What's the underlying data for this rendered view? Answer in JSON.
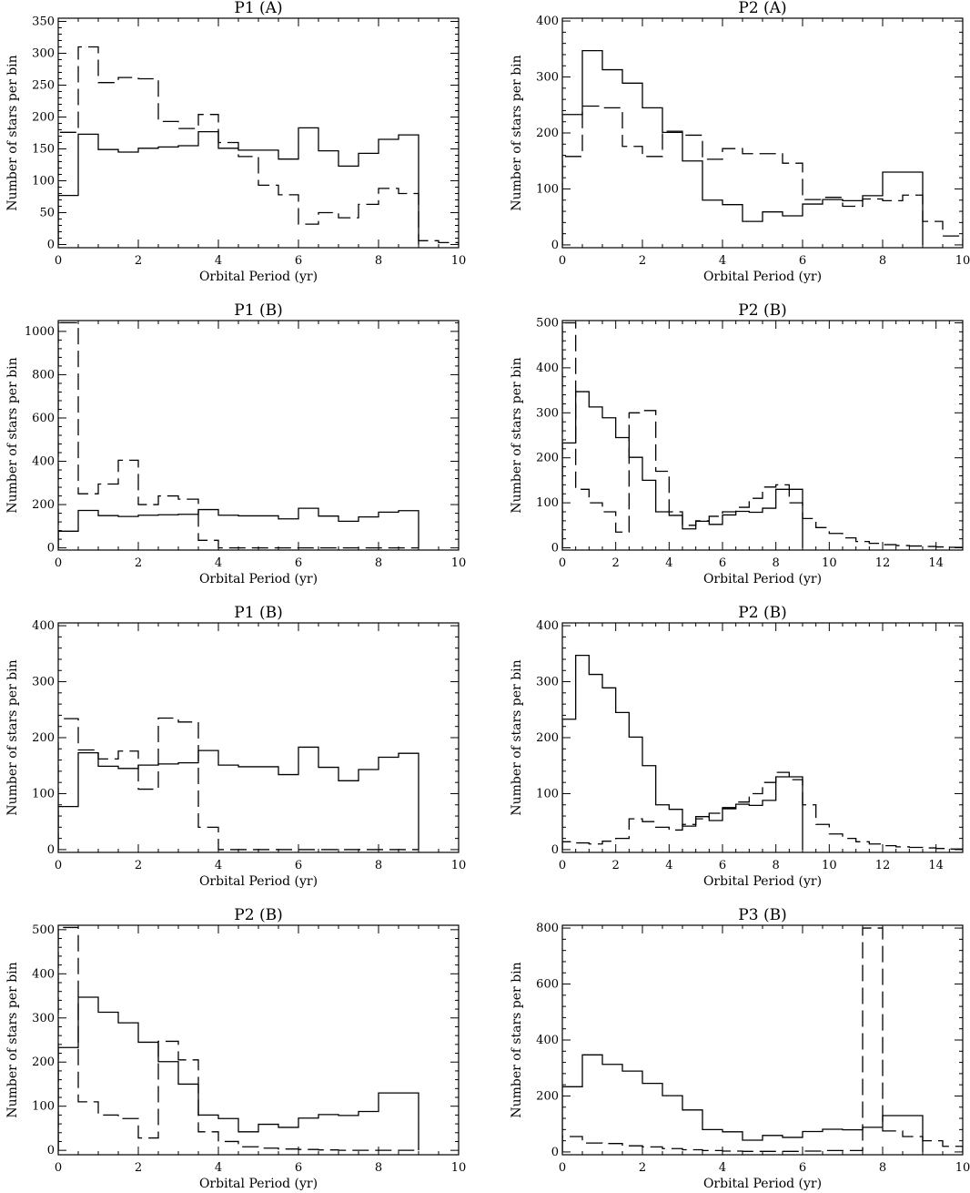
{
  "chart_data": [
    {
      "type": "histogram",
      "title": "P1 (A)",
      "xlabel": "Orbital Period (yr)",
      "ylabel": "Number of stars per bin",
      "xlim": [
        0,
        10
      ],
      "ylim": [
        -5,
        355
      ],
      "xticks": [
        0,
        2,
        4,
        6,
        8,
        10
      ],
      "yticks": [
        0,
        50,
        100,
        150,
        200,
        250,
        300,
        350
      ],
      "series": [
        {
          "style": "solid",
          "edges": [
            0,
            0.5,
            1,
            1.5,
            2,
            2.5,
            3,
            3.5,
            4,
            4.5,
            5,
            5.5,
            6,
            6.5,
            7,
            7.5,
            8,
            8.5,
            9
          ],
          "values": [
            77,
            173,
            149,
            145,
            151,
            153,
            155,
            177,
            151,
            148,
            148,
            134,
            183,
            147,
            123,
            143,
            165,
            172
          ]
        },
        {
          "style": "dashed",
          "edges": [
            0,
            0.5,
            1,
            1.5,
            2,
            2.5,
            3,
            3.5,
            4,
            4.5,
            5,
            5.5,
            6,
            6.5,
            7,
            7.5,
            8,
            8.5,
            9,
            9.5,
            10
          ],
          "values": [
            176,
            310,
            254,
            262,
            260,
            193,
            182,
            204,
            160,
            138,
            93,
            78,
            32,
            50,
            42,
            63,
            88,
            80,
            6,
            3
          ]
        }
      ]
    },
    {
      "type": "histogram",
      "title": "P2 (A)",
      "xlabel": "Orbital Period (yr)",
      "ylabel": "Number of stars per bin",
      "xlim": [
        0,
        10
      ],
      "ylim": [
        -5,
        405
      ],
      "xticks": [
        0,
        2,
        4,
        6,
        8,
        10
      ],
      "yticks": [
        0,
        100,
        200,
        300,
        400
      ],
      "series": [
        {
          "style": "solid",
          "edges": [
            0,
            0.5,
            1,
            1.5,
            2,
            2.5,
            3,
            3.5,
            4,
            4.5,
            5,
            5.5,
            6,
            6.5,
            7,
            7.5,
            8,
            8.5,
            9
          ],
          "values": [
            233,
            347,
            313,
            289,
            245,
            201,
            150,
            80,
            72,
            42,
            59,
            52,
            73,
            81,
            79,
            88,
            130,
            130
          ]
        },
        {
          "style": "dashed",
          "edges": [
            0,
            0.5,
            1,
            1.5,
            2,
            2.5,
            3,
            3.5,
            4,
            4.5,
            5,
            5.5,
            6,
            6.5,
            7,
            7.5,
            8,
            8.5,
            9,
            9.5,
            10
          ],
          "values": [
            158,
            248,
            245,
            176,
            158,
            203,
            196,
            153,
            172,
            163,
            163,
            146,
            81,
            85,
            69,
            82,
            79,
            89,
            42,
            16
          ]
        }
      ]
    },
    {
      "type": "histogram",
      "title": "P1 (B)",
      "xlabel": "Orbital Period (yr)",
      "ylabel": "Number of stars per bin",
      "xlim": [
        0,
        10
      ],
      "ylim": [
        -10,
        1050
      ],
      "xticks": [
        0,
        2,
        4,
        6,
        8,
        10
      ],
      "yticks": [
        0,
        200,
        400,
        600,
        800,
        1000
      ],
      "series": [
        {
          "style": "solid",
          "edges": [
            0,
            0.5,
            1,
            1.5,
            2,
            2.5,
            3,
            3.5,
            4,
            4.5,
            5,
            5.5,
            6,
            6.5,
            7,
            7.5,
            8,
            8.5,
            9
          ],
          "values": [
            77,
            173,
            149,
            145,
            151,
            153,
            155,
            177,
            151,
            148,
            148,
            134,
            183,
            147,
            123,
            143,
            165,
            172
          ]
        },
        {
          "style": "dashed",
          "edges": [
            0,
            0.5,
            1,
            1.5,
            2,
            2.5,
            3,
            3.5,
            4,
            4.5,
            5,
            5.5,
            6,
            6.5,
            7,
            7.5,
            8,
            8.5,
            9
          ],
          "values": [
            1040,
            250,
            295,
            405,
            200,
            240,
            225,
            35,
            0,
            0,
            0,
            0,
            0,
            0,
            0,
            0,
            0,
            0
          ]
        }
      ]
    },
    {
      "type": "histogram",
      "title": "P2 (B)",
      "xlabel": "Orbital Period (yr)",
      "ylabel": "Number of stars per bin",
      "xlim": [
        0,
        15
      ],
      "ylim": [
        -5,
        505
      ],
      "xticks": [
        0,
        2,
        4,
        6,
        8,
        10,
        12,
        14
      ],
      "yticks": [
        0,
        100,
        200,
        300,
        400,
        500
      ],
      "series": [
        {
          "style": "solid",
          "edges": [
            0,
            0.5,
            1,
            1.5,
            2,
            2.5,
            3,
            3.5,
            4,
            4.5,
            5,
            5.5,
            6,
            6.5,
            7,
            7.5,
            8,
            8.5,
            9
          ],
          "values": [
            233,
            347,
            313,
            289,
            245,
            201,
            150,
            80,
            72,
            42,
            59,
            52,
            73,
            81,
            79,
            88,
            130,
            130
          ]
        },
        {
          "style": "dashed",
          "edges": [
            0,
            0.5,
            1,
            1.5,
            2,
            2.5,
            3,
            3.5,
            4,
            4.5,
            5,
            5.5,
            6,
            6.5,
            7,
            7.5,
            8,
            8.5,
            9,
            9.5,
            10,
            10.5,
            11,
            11.5,
            12,
            12.5,
            13,
            13.5,
            14,
            14.5,
            15
          ],
          "values": [
            500,
            130,
            100,
            80,
            35,
            300,
            305,
            170,
            80,
            50,
            60,
            70,
            80,
            90,
            110,
            135,
            140,
            100,
            65,
            45,
            32,
            22,
            14,
            10,
            7,
            5,
            4,
            3,
            2,
            1
          ]
        }
      ]
    },
    {
      "type": "histogram",
      "title": "P1 (B)",
      "xlabel": "Orbital Period (yr)",
      "ylabel": "Number of stars per bin",
      "xlim": [
        0,
        10
      ],
      "ylim": [
        -5,
        405
      ],
      "xticks": [
        0,
        2,
        4,
        6,
        8,
        10
      ],
      "yticks": [
        0,
        100,
        200,
        300,
        400
      ],
      "series": [
        {
          "style": "solid",
          "edges": [
            0,
            0.5,
            1,
            1.5,
            2,
            2.5,
            3,
            3.5,
            4,
            4.5,
            5,
            5.5,
            6,
            6.5,
            7,
            7.5,
            8,
            8.5,
            9
          ],
          "values": [
            77,
            173,
            149,
            145,
            151,
            153,
            155,
            177,
            151,
            148,
            148,
            134,
            183,
            147,
            123,
            143,
            165,
            172
          ]
        },
        {
          "style": "dashed",
          "edges": [
            0,
            0.5,
            1,
            1.5,
            2,
            2.5,
            3,
            3.5,
            4,
            4.5,
            5,
            5.5,
            6,
            6.5,
            7,
            7.5,
            8,
            8.5,
            9
          ],
          "values": [
            234,
            178,
            162,
            176,
            108,
            235,
            228,
            40,
            0,
            0,
            0,
            0,
            0,
            0,
            0,
            0,
            0,
            0
          ]
        }
      ]
    },
    {
      "type": "histogram",
      "title": "P2 (B)",
      "xlabel": "Orbital Period (yr)",
      "ylabel": "Number of stars per bin",
      "xlim": [
        0,
        15
      ],
      "ylim": [
        -5,
        405
      ],
      "xticks": [
        0,
        2,
        4,
        6,
        8,
        10,
        12,
        14
      ],
      "yticks": [
        0,
        100,
        200,
        300,
        400
      ],
      "series": [
        {
          "style": "solid",
          "edges": [
            0,
            0.5,
            1,
            1.5,
            2,
            2.5,
            3,
            3.5,
            4,
            4.5,
            5,
            5.5,
            6,
            6.5,
            7,
            7.5,
            8,
            8.5,
            9
          ],
          "values": [
            233,
            347,
            313,
            289,
            245,
            201,
            150,
            80,
            72,
            42,
            59,
            52,
            73,
            81,
            79,
            88,
            130,
            130
          ]
        },
        {
          "style": "dashed",
          "edges": [
            0,
            0.5,
            1,
            1.5,
            2,
            2.5,
            3,
            3.5,
            4,
            4.5,
            5,
            5.5,
            6,
            6.5,
            7,
            7.5,
            8,
            8.5,
            9,
            9.5,
            10,
            10.5,
            11,
            11.5,
            12,
            12.5,
            13,
            13.5,
            14,
            14.5,
            15
          ],
          "values": [
            14,
            12,
            10,
            15,
            20,
            55,
            50,
            40,
            35,
            45,
            55,
            65,
            75,
            85,
            100,
            120,
            138,
            125,
            80,
            45,
            28,
            20,
            14,
            10,
            7,
            5,
            4,
            3,
            2,
            1
          ]
        }
      ]
    },
    {
      "type": "histogram",
      "title": "P2 (B)",
      "xlabel": "Orbital Period (yr)",
      "ylabel": "Number of stars per bin",
      "xlim": [
        0,
        10
      ],
      "ylim": [
        -10,
        510
      ],
      "xticks": [
        0,
        2,
        4,
        6,
        8,
        10
      ],
      "yticks": [
        0,
        100,
        200,
        300,
        400,
        500
      ],
      "series": [
        {
          "style": "solid",
          "edges": [
            0,
            0.5,
            1,
            1.5,
            2,
            2.5,
            3,
            3.5,
            4,
            4.5,
            5,
            5.5,
            6,
            6.5,
            7,
            7.5,
            8,
            8.5,
            9
          ],
          "values": [
            233,
            347,
            313,
            289,
            245,
            201,
            150,
            80,
            72,
            42,
            59,
            52,
            73,
            81,
            79,
            88,
            130,
            130
          ]
        },
        {
          "style": "dashed",
          "edges": [
            0,
            0.5,
            1,
            1.5,
            2,
            2.5,
            3,
            3.5,
            4,
            4.5,
            5,
            5.5,
            6,
            6.5,
            7,
            7.5,
            8,
            8.5,
            9
          ],
          "values": [
            505,
            110,
            80,
            72,
            28,
            247,
            205,
            42,
            20,
            8,
            5,
            3,
            2,
            1,
            0,
            0,
            0,
            0
          ]
        }
      ]
    },
    {
      "type": "histogram",
      "title": "P3 (B)",
      "xlabel": "Orbital Period (yr)",
      "ylabel": "Number of stars per bin",
      "xlim": [
        0,
        10
      ],
      "ylim": [
        -10,
        810
      ],
      "xticks": [
        0,
        2,
        4,
        6,
        8,
        10
      ],
      "yticks": [
        0,
        200,
        400,
        600,
        800
      ],
      "series": [
        {
          "style": "solid",
          "edges": [
            0,
            0.5,
            1,
            1.5,
            2,
            2.5,
            3,
            3.5,
            4,
            4.5,
            5,
            5.5,
            6,
            6.5,
            7,
            7.5,
            8,
            8.5,
            9
          ],
          "values": [
            233,
            347,
            313,
            289,
            245,
            201,
            150,
            80,
            72,
            42,
            59,
            52,
            73,
            81,
            79,
            88,
            130,
            130
          ]
        },
        {
          "style": "dashed",
          "edges": [
            0,
            0.5,
            1,
            1.5,
            2,
            2.5,
            3,
            3.5,
            4,
            4.5,
            5,
            5.5,
            6,
            6.5,
            7,
            7.5,
            8,
            8.5,
            9,
            9.5,
            10
          ],
          "values": [
            55,
            32,
            30,
            22,
            18,
            12,
            8,
            5,
            3,
            2,
            2,
            2,
            3,
            5,
            5,
            800,
            75,
            55,
            40,
            20
          ]
        }
      ]
    }
  ]
}
